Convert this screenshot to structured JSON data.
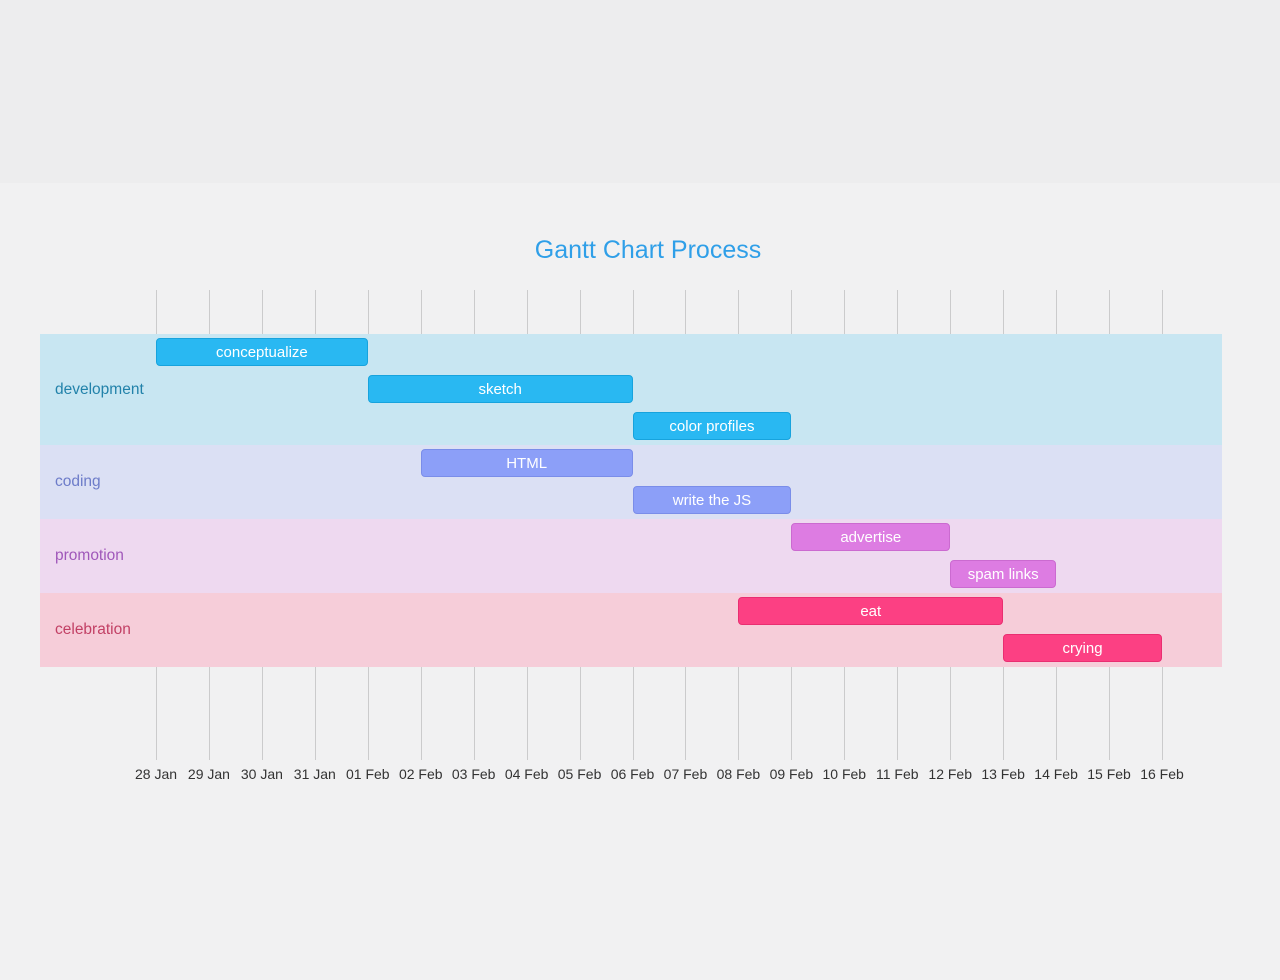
{
  "background": {
    "top_region": "#ededee",
    "page": "#f1f1f2"
  },
  "chart_data": {
    "type": "gantt",
    "title": "Gantt Chart Process",
    "axis_ticks": [
      "28 Jan",
      "29 Jan",
      "30 Jan",
      "31 Jan",
      "01 Feb",
      "02 Feb",
      "03 Feb",
      "04 Feb",
      "05 Feb",
      "06 Feb",
      "07 Feb",
      "08 Feb",
      "09 Feb",
      "10 Feb",
      "11 Feb",
      "12 Feb",
      "13 Feb",
      "14 Feb",
      "15 Feb",
      "16 Feb"
    ],
    "grid": "vertical-daily-lines-on",
    "legend": "none",
    "colors": {
      "title": "#2f9fe8",
      "axis_text": "#333333",
      "grid_line": "#cccccc"
    },
    "sections": [
      {
        "name": "development",
        "label_color": "#2282aa",
        "band_color": "#c8e6f2",
        "bar_color": "#29b8f2",
        "bar_border": "#17a3dd",
        "tasks": [
          {
            "label": "conceptualize",
            "start": "28 Jan",
            "end": "01 Feb",
            "duration_days": 4
          },
          {
            "label": "sketch",
            "start": "01 Feb",
            "end": "06 Feb",
            "duration_days": 5
          },
          {
            "label": "color profiles",
            "start": "06 Feb",
            "end": "09 Feb",
            "duration_days": 3
          }
        ]
      },
      {
        "name": "coding",
        "label_color": "#6d7cc9",
        "band_color": "#dbe0f4",
        "bar_color": "#8c9ff8",
        "bar_border": "#7a8de9",
        "tasks": [
          {
            "label": "HTML",
            "start": "02 Feb",
            "end": "06 Feb",
            "duration_days": 4
          },
          {
            "label": "write the JS",
            "start": "06 Feb",
            "end": "09 Feb",
            "duration_days": 3
          }
        ]
      },
      {
        "name": "promotion",
        "label_color": "#a058ba",
        "band_color": "#eed9f0",
        "bar_color": "#dd7ce2",
        "bar_border": "#cb6ad0",
        "tasks": [
          {
            "label": "advertise",
            "start": "09 Feb",
            "end": "12 Feb",
            "duration_days": 3
          },
          {
            "label": "spam links",
            "start": "12 Feb",
            "end": "14 Feb",
            "duration_days": 2
          }
        ]
      },
      {
        "name": "celebration",
        "label_color": "#c24065",
        "band_color": "#f6cdd9",
        "bar_color": "#fc4083",
        "bar_border": "#e92e71",
        "tasks": [
          {
            "label": "eat",
            "start": "08 Feb",
            "end": "13 Feb",
            "duration_days": 5
          },
          {
            "label": "crying",
            "start": "13 Feb",
            "end": "16 Feb",
            "duration_days": 3
          }
        ]
      }
    ]
  }
}
